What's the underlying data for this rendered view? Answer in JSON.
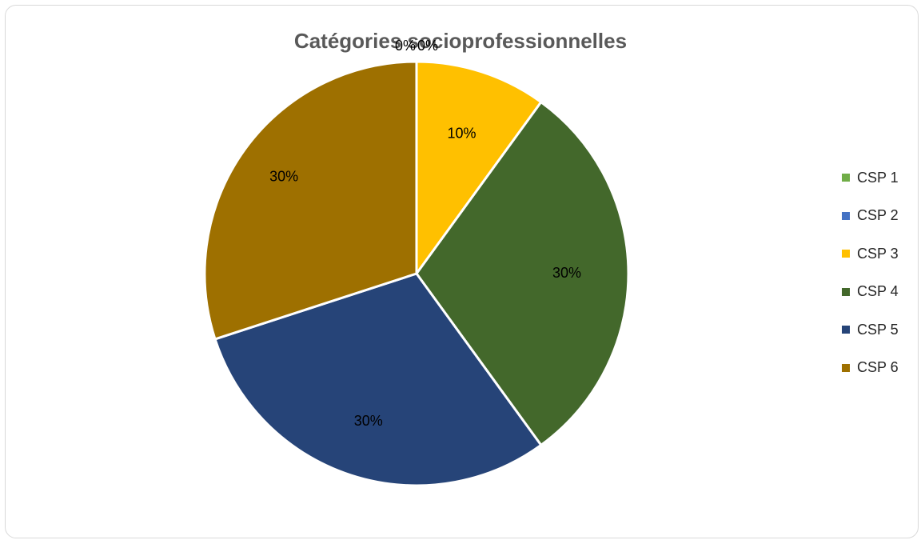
{
  "chart_data": {
    "type": "pie",
    "title": "Catégories socioprofessionnelles",
    "categories": [
      "CSP 1",
      "CSP 2",
      "CSP 3",
      "CSP 4",
      "CSP 5",
      "CSP 6"
    ],
    "values": [
      0,
      0,
      10,
      30,
      30,
      30
    ],
    "data_labels": [
      "0%",
      "0%",
      "10%",
      "30%",
      "30%",
      "30%"
    ],
    "colors": [
      "#70ad47",
      "#4472c4",
      "#ffc000",
      "#43682b",
      "#264478",
      "#9e7000"
    ],
    "legend_position": "right"
  }
}
